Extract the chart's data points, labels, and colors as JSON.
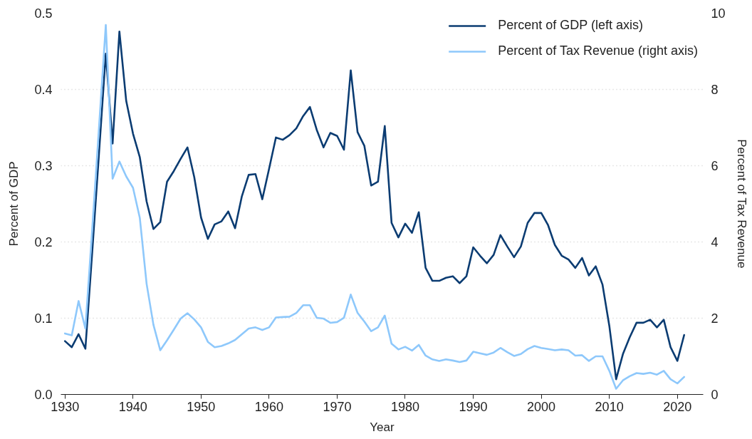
{
  "chart_data": {
    "type": "line",
    "xlabel": "Year",
    "ylabel": "Percent of GDP",
    "y2label": "Percent of Tax Revenue",
    "x": [
      1930,
      1931,
      1932,
      1933,
      1934,
      1935,
      1936,
      1937,
      1938,
      1939,
      1940,
      1941,
      1942,
      1943,
      1944,
      1945,
      1946,
      1947,
      1948,
      1949,
      1950,
      1951,
      1952,
      1953,
      1954,
      1955,
      1956,
      1957,
      1958,
      1959,
      1960,
      1961,
      1962,
      1963,
      1964,
      1965,
      1966,
      1967,
      1968,
      1969,
      1970,
      1971,
      1972,
      1973,
      1974,
      1975,
      1976,
      1977,
      1978,
      1979,
      1980,
      1981,
      1982,
      1983,
      1984,
      1985,
      1986,
      1987,
      1988,
      1989,
      1990,
      1991,
      1992,
      1993,
      1994,
      1995,
      1996,
      1997,
      1998,
      1999,
      2000,
      2001,
      2002,
      2003,
      2004,
      2005,
      2006,
      2007,
      2008,
      2009,
      2010,
      2011,
      2012,
      2013,
      2014,
      2015,
      2016,
      2017,
      2018,
      2019,
      2020,
      2021
    ],
    "series": [
      {
        "name": "Percent of GDP (left axis)",
        "color": "#0b3c72",
        "values": [
          0.07,
          0.062,
          0.079,
          0.06,
          0.186,
          0.316,
          0.447,
          0.329,
          0.476,
          0.385,
          0.342,
          0.311,
          0.253,
          0.217,
          0.226,
          0.279,
          0.293,
          0.309,
          0.324,
          0.285,
          0.232,
          0.204,
          0.223,
          0.227,
          0.24,
          0.218,
          0.26,
          0.288,
          0.289,
          0.256,
          0.296,
          0.337,
          0.334,
          0.34,
          0.349,
          0.365,
          0.377,
          0.347,
          0.324,
          0.343,
          0.339,
          0.321,
          0.425,
          0.344,
          0.326,
          0.274,
          0.279,
          0.352,
          0.225,
          0.206,
          0.224,
          0.212,
          0.239,
          0.166,
          0.149,
          0.149,
          0.153,
          0.155,
          0.146,
          0.155,
          0.193,
          0.182,
          0.172,
          0.183,
          0.209,
          0.194,
          0.18,
          0.194,
          0.225,
          0.238,
          0.238,
          0.222,
          0.196,
          0.182,
          0.177,
          0.166,
          0.179,
          0.156,
          0.168,
          0.144,
          0.09,
          0.02,
          0.053,
          0.075,
          0.094,
          0.094,
          0.098,
          0.088,
          0.098,
          0.062,
          0.044,
          0.078
        ]
      },
      {
        "name": "Percent of Tax Revenue (right axis)",
        "color": "#8ec8fb",
        "axis": "y2",
        "values": [
          1.6,
          1.55,
          2.45,
          1.73,
          4.32,
          7.0,
          9.69,
          5.66,
          6.11,
          5.72,
          5.42,
          4.63,
          2.9,
          1.83,
          1.16,
          1.42,
          1.7,
          1.99,
          2.13,
          1.97,
          1.76,
          1.38,
          1.24,
          1.27,
          1.34,
          1.43,
          1.58,
          1.73,
          1.76,
          1.69,
          1.76,
          2.02,
          2.03,
          2.04,
          2.14,
          2.34,
          2.34,
          2.01,
          1.99,
          1.88,
          1.9,
          2.01,
          2.62,
          2.14,
          1.91,
          1.66,
          1.76,
          2.07,
          1.33,
          1.18,
          1.25,
          1.15,
          1.3,
          1.02,
          0.92,
          0.88,
          0.92,
          0.89,
          0.85,
          0.89,
          1.12,
          1.08,
          1.04,
          1.1,
          1.22,
          1.11,
          1.01,
          1.06,
          1.19,
          1.27,
          1.22,
          1.19,
          1.16,
          1.18,
          1.16,
          1.02,
          1.03,
          0.88,
          1.0,
          1.0,
          0.62,
          0.15,
          0.37,
          0.48,
          0.56,
          0.54,
          0.57,
          0.52,
          0.62,
          0.4,
          0.29,
          0.46
        ]
      }
    ],
    "xlim": [
      1929.4,
      2023.8
    ],
    "xticks": [
      1930,
      1940,
      1950,
      1960,
      1970,
      1980,
      1990,
      2000,
      2010,
      2020
    ],
    "ylim": [
      0,
      0.5
    ],
    "yticks": [
      {
        "value": 0,
        "label": "0.0"
      },
      0.1,
      0.2,
      0.3,
      0.4,
      0.5
    ],
    "y2lim": [
      0,
      10
    ],
    "y2ticks": [
      0,
      2,
      4,
      6,
      8,
      10
    ],
    "grid": "y",
    "legend": "top right",
    "line_style": "solid"
  }
}
